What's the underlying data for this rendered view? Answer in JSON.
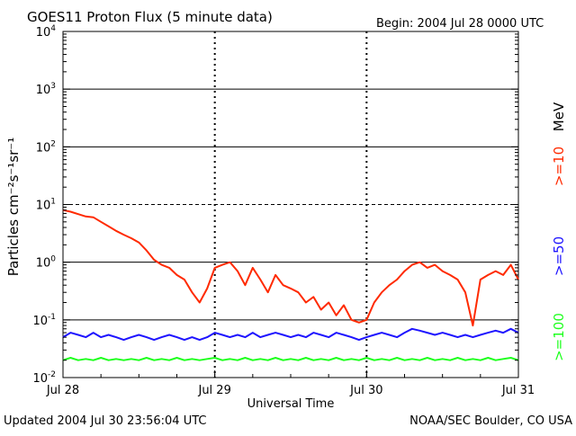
{
  "chart_data": {
    "type": "line",
    "title": "GOES11 Proton Flux (5 minute data)",
    "subtitle": "Begin: 2004 Jul 28 0000 UTC",
    "xlabel": "Universal Time",
    "ylabel": "Particles cm⁻²s⁻¹sr⁻¹",
    "y_scale": "log",
    "ylim": [
      0.01,
      10000
    ],
    "xlim_days": [
      0,
      3
    ],
    "x_tick_labels": [
      "Jul 28",
      "Jul 29",
      "Jul 30",
      "Jul 31"
    ],
    "y_tick_labels": [
      {
        "base": "10",
        "exp": "-2"
      },
      {
        "base": "10",
        "exp": "-1"
      },
      {
        "base": "10",
        "exp": "0"
      },
      {
        "base": "10",
        "exp": "1"
      },
      {
        "base": "10",
        "exp": "2"
      },
      {
        "base": "10",
        "exp": "3"
      },
      {
        "base": "10",
        "exp": "4"
      }
    ],
    "threshold_line": 10,
    "grid": true,
    "unit_label": "MeV",
    "series": [
      {
        "name": ">=10",
        "color": "#ff2a00",
        "points": [
          [
            0.0,
            8.0
          ],
          [
            0.05,
            7.5
          ],
          [
            0.1,
            6.8
          ],
          [
            0.15,
            6.2
          ],
          [
            0.2,
            6.0
          ],
          [
            0.25,
            5.0
          ],
          [
            0.3,
            4.2
          ],
          [
            0.35,
            3.5
          ],
          [
            0.4,
            3.0
          ],
          [
            0.45,
            2.6
          ],
          [
            0.5,
            2.2
          ],
          [
            0.55,
            1.6
          ],
          [
            0.6,
            1.1
          ],
          [
            0.65,
            0.9
          ],
          [
            0.7,
            0.8
          ],
          [
            0.75,
            0.6
          ],
          [
            0.8,
            0.5
          ],
          [
            0.85,
            0.3
          ],
          [
            0.9,
            0.2
          ],
          [
            0.95,
            0.35
          ],
          [
            1.0,
            0.8
          ],
          [
            1.05,
            0.9
          ],
          [
            1.1,
            1.0
          ],
          [
            1.15,
            0.7
          ],
          [
            1.2,
            0.4
          ],
          [
            1.25,
            0.8
          ],
          [
            1.3,
            0.5
          ],
          [
            1.35,
            0.3
          ],
          [
            1.4,
            0.6
          ],
          [
            1.45,
            0.4
          ],
          [
            1.5,
            0.35
          ],
          [
            1.55,
            0.3
          ],
          [
            1.6,
            0.2
          ],
          [
            1.65,
            0.25
          ],
          [
            1.7,
            0.15
          ],
          [
            1.75,
            0.2
          ],
          [
            1.8,
            0.12
          ],
          [
            1.85,
            0.18
          ],
          [
            1.9,
            0.1
          ],
          [
            1.95,
            0.09
          ],
          [
            2.0,
            0.1
          ],
          [
            2.05,
            0.2
          ],
          [
            2.1,
            0.3
          ],
          [
            2.15,
            0.4
          ],
          [
            2.2,
            0.5
          ],
          [
            2.25,
            0.7
          ],
          [
            2.3,
            0.9
          ],
          [
            2.35,
            1.0
          ],
          [
            2.4,
            0.8
          ],
          [
            2.45,
            0.9
          ],
          [
            2.5,
            0.7
          ],
          [
            2.55,
            0.6
          ],
          [
            2.6,
            0.5
          ],
          [
            2.65,
            0.3
          ],
          [
            2.7,
            0.08
          ],
          [
            2.75,
            0.5
          ],
          [
            2.8,
            0.6
          ],
          [
            2.85,
            0.7
          ],
          [
            2.9,
            0.6
          ],
          [
            2.95,
            0.9
          ],
          [
            3.0,
            0.5
          ]
        ]
      },
      {
        "name": ">=50",
        "color": "#1e14ff",
        "points": [
          [
            0.0,
            0.05
          ],
          [
            0.05,
            0.06
          ],
          [
            0.1,
            0.055
          ],
          [
            0.15,
            0.05
          ],
          [
            0.2,
            0.06
          ],
          [
            0.25,
            0.05
          ],
          [
            0.3,
            0.055
          ],
          [
            0.35,
            0.05
          ],
          [
            0.4,
            0.045
          ],
          [
            0.45,
            0.05
          ],
          [
            0.5,
            0.055
          ],
          [
            0.55,
            0.05
          ],
          [
            0.6,
            0.045
          ],
          [
            0.65,
            0.05
          ],
          [
            0.7,
            0.055
          ],
          [
            0.75,
            0.05
          ],
          [
            0.8,
            0.045
          ],
          [
            0.85,
            0.05
          ],
          [
            0.9,
            0.045
          ],
          [
            0.95,
            0.05
          ],
          [
            1.0,
            0.06
          ],
          [
            1.05,
            0.055
          ],
          [
            1.1,
            0.05
          ],
          [
            1.15,
            0.055
          ],
          [
            1.2,
            0.05
          ],
          [
            1.25,
            0.06
          ],
          [
            1.3,
            0.05
          ],
          [
            1.35,
            0.055
          ],
          [
            1.4,
            0.06
          ],
          [
            1.45,
            0.055
          ],
          [
            1.5,
            0.05
          ],
          [
            1.55,
            0.055
          ],
          [
            1.6,
            0.05
          ],
          [
            1.65,
            0.06
          ],
          [
            1.7,
            0.055
          ],
          [
            1.75,
            0.05
          ],
          [
            1.8,
            0.06
          ],
          [
            1.85,
            0.055
          ],
          [
            1.9,
            0.05
          ],
          [
            1.95,
            0.045
          ],
          [
            2.0,
            0.05
          ],
          [
            2.05,
            0.055
          ],
          [
            2.1,
            0.06
          ],
          [
            2.15,
            0.055
          ],
          [
            2.2,
            0.05
          ],
          [
            2.25,
            0.06
          ],
          [
            2.3,
            0.07
          ],
          [
            2.35,
            0.065
          ],
          [
            2.4,
            0.06
          ],
          [
            2.45,
            0.055
          ],
          [
            2.5,
            0.06
          ],
          [
            2.55,
            0.055
          ],
          [
            2.6,
            0.05
          ],
          [
            2.65,
            0.055
          ],
          [
            2.7,
            0.05
          ],
          [
            2.75,
            0.055
          ],
          [
            2.8,
            0.06
          ],
          [
            2.85,
            0.065
          ],
          [
            2.9,
            0.06
          ],
          [
            2.95,
            0.07
          ],
          [
            3.0,
            0.06
          ]
        ]
      },
      {
        "name": ">=100",
        "color": "#1eff1e",
        "points": [
          [
            0.0,
            0.02
          ],
          [
            0.05,
            0.022
          ],
          [
            0.1,
            0.02
          ],
          [
            0.15,
            0.021
          ],
          [
            0.2,
            0.02
          ],
          [
            0.25,
            0.022
          ],
          [
            0.3,
            0.02
          ],
          [
            0.35,
            0.021
          ],
          [
            0.4,
            0.02
          ],
          [
            0.45,
            0.021
          ],
          [
            0.5,
            0.02
          ],
          [
            0.55,
            0.022
          ],
          [
            0.6,
            0.02
          ],
          [
            0.65,
            0.021
          ],
          [
            0.7,
            0.02
          ],
          [
            0.75,
            0.022
          ],
          [
            0.8,
            0.02
          ],
          [
            0.85,
            0.021
          ],
          [
            0.9,
            0.02
          ],
          [
            0.95,
            0.021
          ],
          [
            1.0,
            0.022
          ],
          [
            1.05,
            0.02
          ],
          [
            1.1,
            0.021
          ],
          [
            1.15,
            0.02
          ],
          [
            1.2,
            0.022
          ],
          [
            1.25,
            0.02
          ],
          [
            1.3,
            0.021
          ],
          [
            1.35,
            0.02
          ],
          [
            1.4,
            0.022
          ],
          [
            1.45,
            0.02
          ],
          [
            1.5,
            0.021
          ],
          [
            1.55,
            0.02
          ],
          [
            1.6,
            0.022
          ],
          [
            1.65,
            0.02
          ],
          [
            1.7,
            0.021
          ],
          [
            1.75,
            0.02
          ],
          [
            1.8,
            0.022
          ],
          [
            1.85,
            0.02
          ],
          [
            1.9,
            0.021
          ],
          [
            1.95,
            0.02
          ],
          [
            2.0,
            0.022
          ],
          [
            2.05,
            0.02
          ],
          [
            2.1,
            0.021
          ],
          [
            2.15,
            0.02
          ],
          [
            2.2,
            0.022
          ],
          [
            2.25,
            0.02
          ],
          [
            2.3,
            0.021
          ],
          [
            2.35,
            0.02
          ],
          [
            2.4,
            0.022
          ],
          [
            2.45,
            0.02
          ],
          [
            2.5,
            0.021
          ],
          [
            2.55,
            0.02
          ],
          [
            2.6,
            0.022
          ],
          [
            2.65,
            0.02
          ],
          [
            2.7,
            0.021
          ],
          [
            2.75,
            0.02
          ],
          [
            2.8,
            0.022
          ],
          [
            2.85,
            0.02
          ],
          [
            2.9,
            0.021
          ],
          [
            2.95,
            0.022
          ],
          [
            3.0,
            0.02
          ]
        ]
      }
    ]
  },
  "footer": {
    "updated": "Updated 2004 Jul 30 23:56:04 UTC",
    "credit": "NOAA/SEC Boulder, CO USA"
  }
}
